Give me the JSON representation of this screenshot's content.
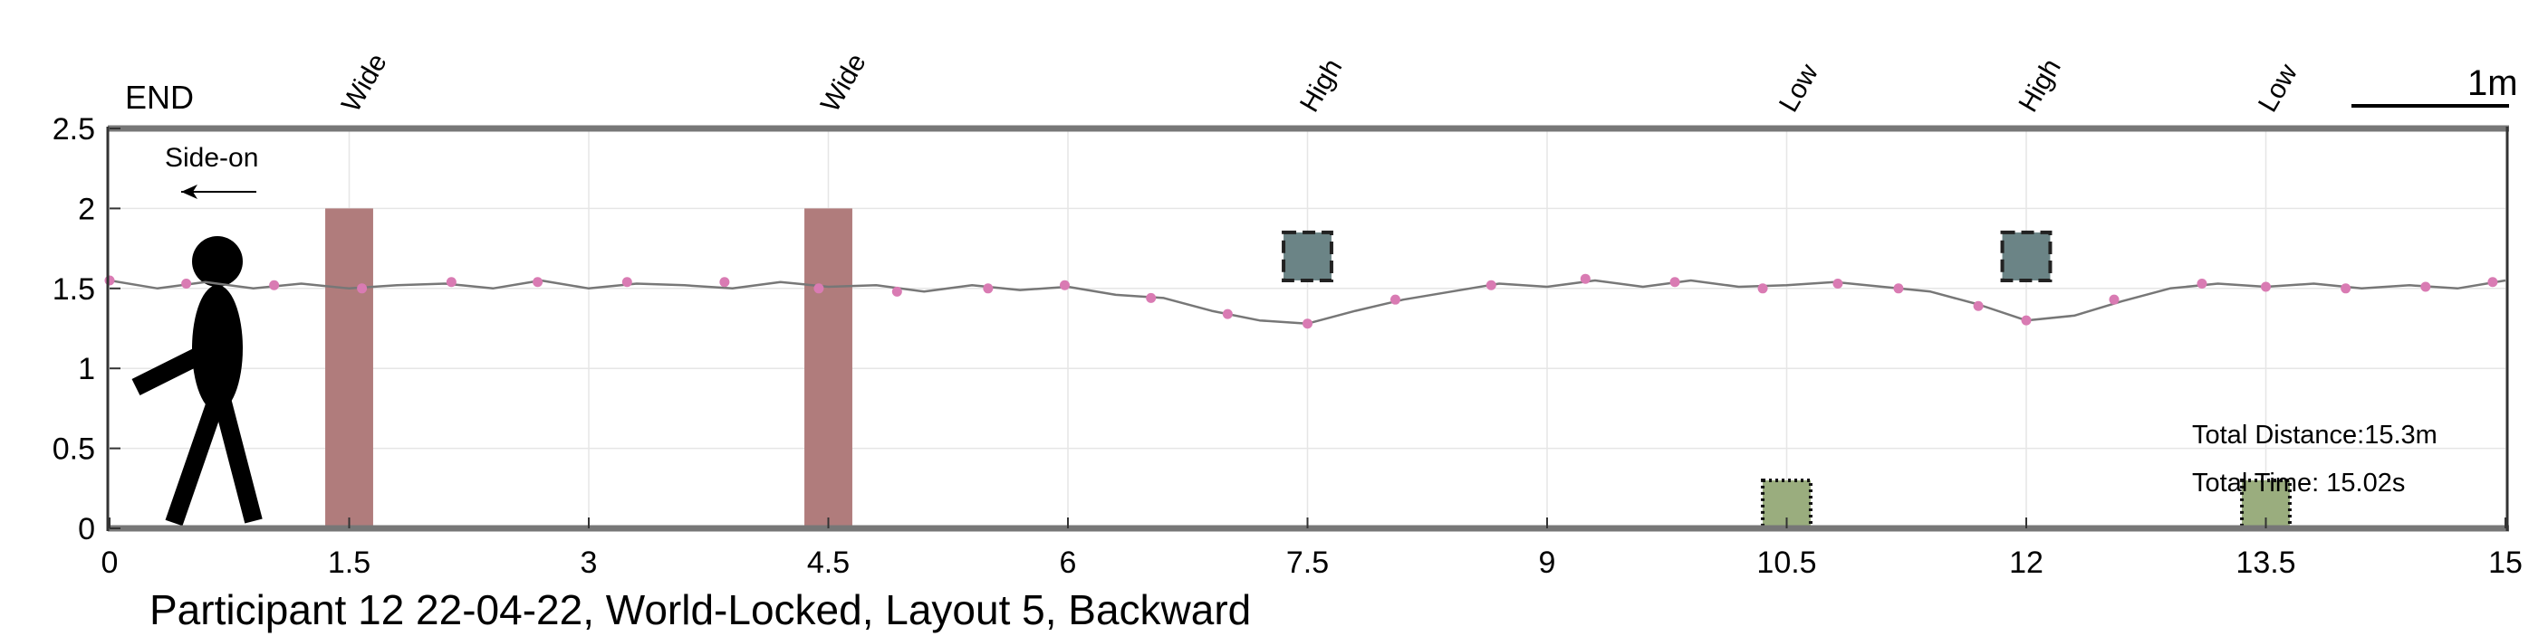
{
  "chart_data": {
    "type": "line",
    "caption": "Participant 12 22-04-22, World-Locked, Layout 5, Backward",
    "end_label": "END",
    "direction_label": "Side-on",
    "scale_label": "1m",
    "xlim": [
      0,
      15
    ],
    "ylim": [
      0,
      2.5
    ],
    "x_ticks": [
      0,
      1.5,
      3,
      4.5,
      6,
      7.5,
      9,
      10.5,
      12,
      13.5,
      15
    ],
    "x_tick_labels": [
      "0",
      "1.5",
      "3",
      "4.5",
      "6",
      "7.5",
      "9",
      "10.5",
      "12",
      "13.5",
      "15"
    ],
    "y_ticks": [
      0,
      0.5,
      1,
      1.5,
      2,
      2.5
    ],
    "y_tick_labels": [
      "0",
      "0.5",
      "1",
      "1.5",
      "2",
      "2.5"
    ],
    "grid": true,
    "obstacle_labels": [
      {
        "text": "Wide",
        "x": 1.5
      },
      {
        "text": "Wide",
        "x": 4.5
      },
      {
        "text": "High",
        "x": 7.5
      },
      {
        "text": "Low",
        "x": 10.5
      },
      {
        "text": "High",
        "x": 12
      },
      {
        "text": "Low",
        "x": 13.5
      }
    ],
    "obstacles": [
      {
        "kind": "wide",
        "x": 1.5,
        "width": 0.3,
        "y_min": 0,
        "y_max": 2,
        "color": "#b07c7c"
      },
      {
        "kind": "wide",
        "x": 4.5,
        "width": 0.3,
        "y_min": 0,
        "y_max": 2,
        "color": "#b07c7c"
      },
      {
        "kind": "high",
        "x": 7.5,
        "width": 0.3,
        "y_min": 1.55,
        "y_max": 1.85,
        "color": "#6b8486"
      },
      {
        "kind": "low",
        "x": 10.5,
        "width": 0.3,
        "y_min": 0,
        "y_max": 0.3,
        "color": "#9aad7e"
      },
      {
        "kind": "high",
        "x": 12,
        "width": 0.3,
        "y_min": 1.55,
        "y_max": 1.85,
        "color": "#6b8486"
      },
      {
        "kind": "low",
        "x": 13.5,
        "width": 0.3,
        "y_min": 0,
        "y_max": 0.3,
        "color": "#9aad7e"
      }
    ],
    "trajectory": {
      "x": [
        0,
        0.3,
        0.6,
        0.9,
        1.2,
        1.5,
        1.8,
        2.1,
        2.4,
        2.7,
        3.0,
        3.3,
        3.6,
        3.9,
        4.2,
        4.5,
        4.8,
        5.1,
        5.4,
        5.7,
        6.0,
        6.3,
        6.6,
        6.9,
        7.2,
        7.5,
        7.8,
        8.1,
        8.4,
        8.7,
        9.0,
        9.3,
        9.6,
        9.9,
        10.2,
        10.5,
        10.8,
        11.1,
        11.4,
        11.7,
        12.0,
        12.3,
        12.6,
        12.9,
        13.2,
        13.5,
        13.8,
        14.1,
        14.4,
        14.7,
        15.0
      ],
      "y": [
        1.55,
        1.5,
        1.54,
        1.5,
        1.53,
        1.5,
        1.52,
        1.53,
        1.5,
        1.55,
        1.5,
        1.53,
        1.52,
        1.5,
        1.54,
        1.51,
        1.52,
        1.48,
        1.52,
        1.49,
        1.51,
        1.46,
        1.44,
        1.36,
        1.3,
        1.28,
        1.36,
        1.43,
        1.48,
        1.53,
        1.51,
        1.55,
        1.51,
        1.55,
        1.51,
        1.52,
        1.54,
        1.51,
        1.48,
        1.4,
        1.3,
        1.33,
        1.42,
        1.5,
        1.53,
        1.51,
        1.53,
        1.5,
        1.52,
        1.5,
        1.55
      ],
      "color": "#777777"
    },
    "markers": {
      "x": [
        0.0,
        0.48,
        1.03,
        1.58,
        2.14,
        2.68,
        3.24,
        3.85,
        4.44,
        4.93,
        5.5,
        5.98,
        6.52,
        7.0,
        7.5,
        8.05,
        8.65,
        9.24,
        9.8,
        10.35,
        10.82,
        11.2,
        11.7,
        12.0,
        12.55,
        13.1,
        13.5,
        14.0,
        14.5,
        14.92
      ],
      "y": [
        1.55,
        1.53,
        1.52,
        1.5,
        1.54,
        1.54,
        1.54,
        1.54,
        1.5,
        1.48,
        1.5,
        1.52,
        1.44,
        1.34,
        1.28,
        1.43,
        1.52,
        1.56,
        1.54,
        1.5,
        1.53,
        1.5,
        1.39,
        1.3,
        1.43,
        1.53,
        1.51,
        1.5,
        1.51,
        1.54
      ],
      "color": "#d97bb3"
    },
    "total_distance": "Total Distance:15.3m",
    "total_time": "Total Time: 15.02s"
  }
}
